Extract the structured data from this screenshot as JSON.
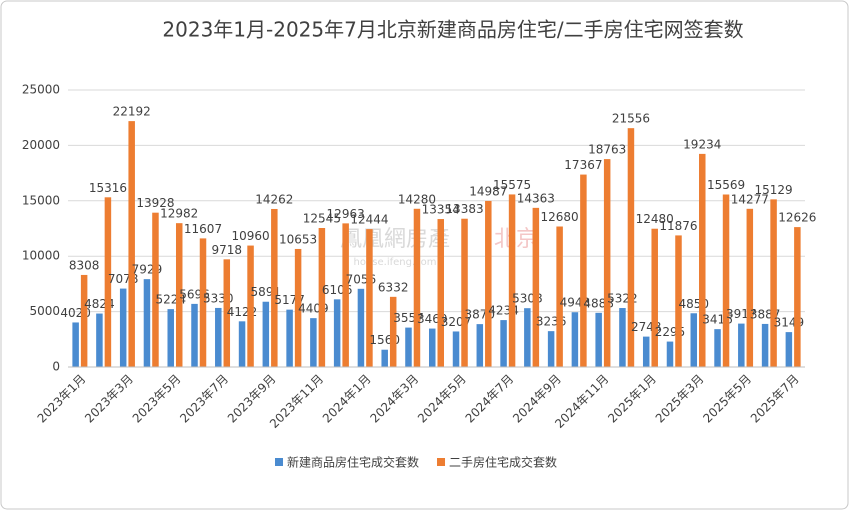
{
  "chart_data": {
    "type": "bar",
    "title": "2023年1月-2025年7月北京新建商品房住宅/二手房住宅网签套数",
    "categories": [
      "2023年1月",
      null,
      "2023年3月",
      null,
      "2023年5月",
      null,
      "2023年7月",
      null,
      "2023年9月",
      null,
      "2023年11月",
      null,
      "2024年1月",
      null,
      "2024年3月",
      null,
      "2024年5月",
      null,
      "2024年7月",
      null,
      "2024年9月",
      null,
      "2024年11月",
      null,
      "2025年1月",
      null,
      "2025年3月",
      null,
      "2025年5月",
      null,
      "2025年7月"
    ],
    "series": [
      {
        "name": "新建商品房住宅成交套数",
        "color": "#4a8bd0",
        "values": [
          4020,
          4824,
          7078,
          7929,
          5224,
          5696,
          5330,
          4122,
          5891,
          5177,
          4409,
          6106,
          7056,
          1560,
          3557,
          3469,
          3207,
          3870,
          4234,
          5308,
          3236,
          4943,
          4888,
          5322,
          2743,
          2295,
          4850,
          3416,
          3917,
          3887,
          3149
        ]
      },
      {
        "name": "二手房住宅成交套数",
        "color": "#ed7d31",
        "values": [
          8308,
          15316,
          22192,
          13928,
          12982,
          11607,
          9718,
          10960,
          14262,
          10653,
          12545,
          12963,
          12444,
          6332,
          14280,
          13354,
          13383,
          14987,
          15575,
          14363,
          12680,
          17367,
          18763,
          21556,
          12480,
          11876,
          19234,
          15569,
          14277,
          15129,
          12626
        ]
      }
    ],
    "ylim": [
      0,
      25000
    ],
    "yticks": [
      0,
      5000,
      10000,
      15000,
      20000,
      25000
    ],
    "grid": true,
    "legend": "bottom",
    "watermark": {
      "logo": "鳳凰網房產",
      "city": "北京",
      "site": "house.ifeng.com"
    }
  }
}
